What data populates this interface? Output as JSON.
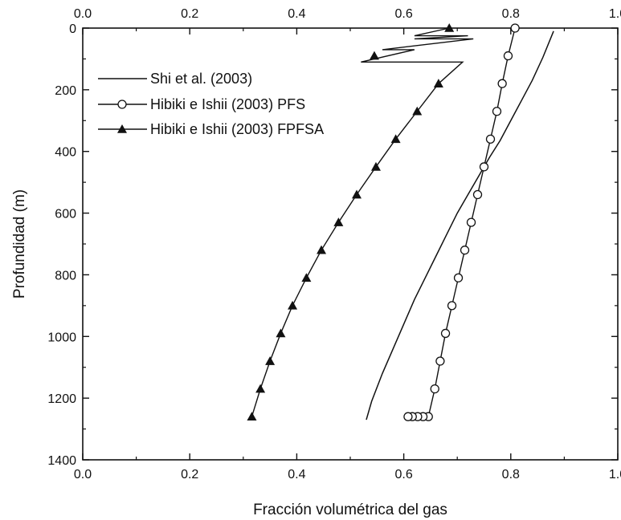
{
  "chart_data": {
    "type": "line",
    "xlabel": "Fracción volumétrica del gas",
    "ylabel": "Profundidad (m)",
    "xlim": [
      0.0,
      1.0
    ],
    "ylim": [
      0,
      1400
    ],
    "y_inverted": true,
    "x_axis_top_mirrored": true,
    "x_ticks": [
      "0.0",
      "0.2",
      "0.4",
      "0.6",
      "0.8",
      "1.0"
    ],
    "y_ticks": [
      "0",
      "200",
      "400",
      "600",
      "800",
      "1000",
      "1200",
      "1400"
    ],
    "grid": false,
    "legend_position": "top-left",
    "series": [
      {
        "name": "Shi et al. (2003)",
        "marker": "none",
        "x": [
          0.88,
          0.86,
          0.84,
          0.82,
          0.8,
          0.78,
          0.76,
          0.74,
          0.72,
          0.7,
          0.68,
          0.66,
          0.64,
          0.62,
          0.6,
          0.58,
          0.56,
          0.54,
          0.53
        ],
        "y": [
          10,
          95,
          170,
          235,
          300,
          365,
          420,
          480,
          540,
          600,
          670,
          740,
          810,
          880,
          960,
          1040,
          1120,
          1210,
          1270
        ]
      },
      {
        "name": "Hibiki e Ishii (2003) PFS",
        "marker": "open-circle",
        "x": [
          0.808,
          0.795,
          0.784,
          0.774,
          0.762,
          0.75,
          0.738,
          0.726,
          0.714,
          0.702,
          0.69,
          0.678,
          0.668,
          0.658,
          0.646,
          0.636,
          0.626,
          0.616,
          0.608
        ],
        "y": [
          0,
          90,
          180,
          270,
          360,
          450,
          540,
          630,
          720,
          810,
          900,
          990,
          1080,
          1170,
          1260,
          1260,
          1260,
          1260,
          1260
        ]
      },
      {
        "name": "Hibiki e Ishii (2003) FPFSA",
        "marker": "filled-triangle",
        "x": [
          0.685,
          0.545,
          0.665,
          0.625,
          0.585,
          0.548,
          0.512,
          0.478,
          0.446,
          0.418,
          0.392,
          0.37,
          0.35,
          0.332,
          0.316
        ],
        "y": [
          0,
          90,
          180,
          270,
          360,
          450,
          540,
          630,
          720,
          810,
          900,
          990,
          1080,
          1170,
          1260
        ]
      }
    ]
  }
}
